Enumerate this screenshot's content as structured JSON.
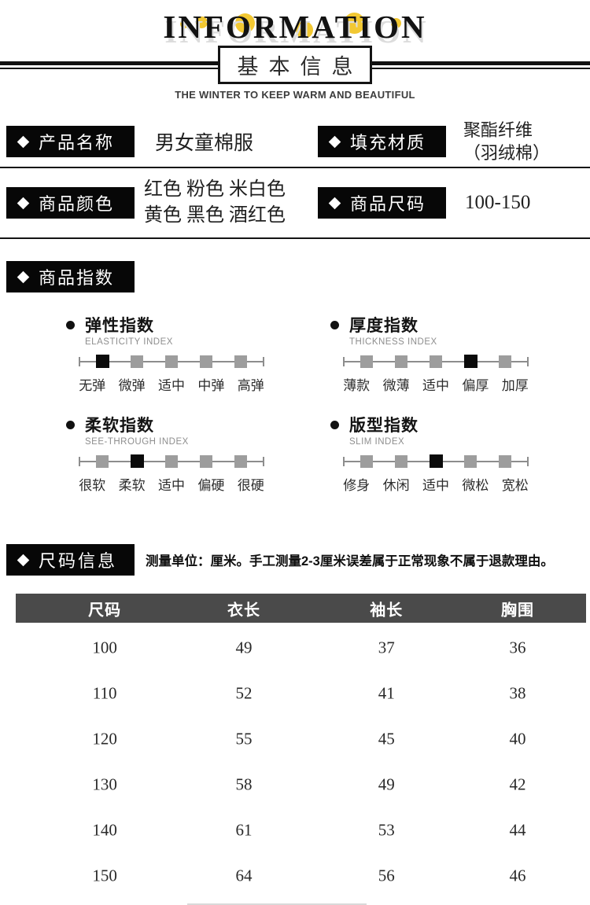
{
  "header": {
    "title": "INFORMATION",
    "box_title": "基本信息",
    "subtitle": "THE WINTER TO KEEP WARM AND BEAUTIFUL",
    "accent_color": "#F2C832"
  },
  "info": {
    "rows": [
      {
        "left": {
          "label": "产品名称",
          "value_lines": [
            "男女童棉服",
            ""
          ]
        },
        "right": {
          "label": "填充材质",
          "value_lines": [
            "聚酯纤维",
            "（羽绒棉）"
          ]
        }
      },
      {
        "left": {
          "label": "商品颜色",
          "value_lines": [
            "红色  粉色  米白色",
            "黄色  黑色  酒红色"
          ]
        },
        "right": {
          "label": "商品尺码",
          "value_lines": [
            "100-150",
            ""
          ]
        }
      }
    ]
  },
  "index_section": {
    "label": "商品指数",
    "marker_color": "#9D9D9D",
    "marker_active_color": "#0B0B0B",
    "blocks": [
      {
        "title": "弹性指数",
        "subtitle": "ELASTICITY INDEX",
        "selected": 0,
        "levels": [
          "无弹",
          "微弹",
          "适中",
          "中弹",
          "高弹"
        ]
      },
      {
        "title": "厚度指数",
        "subtitle": "THICKNESS INDEX",
        "selected": 3,
        "levels": [
          "薄款",
          "微薄",
          "适中",
          "偏厚",
          "加厚"
        ]
      },
      {
        "title": "柔软指数",
        "subtitle": "SEE-THROUGH INDEX",
        "selected": 1,
        "levels": [
          "很软",
          "柔软",
          "适中",
          "偏硬",
          "很硬"
        ]
      },
      {
        "title": "版型指数",
        "subtitle": "SLIM INDEX",
        "selected": 2,
        "levels": [
          "修身",
          "休闲",
          "适中",
          "微松",
          "宽松"
        ]
      }
    ]
  },
  "size_section": {
    "label": "尺码信息",
    "note": "测量单位：厘米。手工测量2-3厘米误差属于正常现象不属于退款理由。",
    "table": {
      "header_bg": "#4A4A4A",
      "columns": [
        "尺码",
        "衣长",
        "袖长",
        "胸围"
      ],
      "rows": [
        [
          "100",
          "49",
          "37",
          "36"
        ],
        [
          "110",
          "52",
          "41",
          "38"
        ],
        [
          "120",
          "55",
          "45",
          "40"
        ],
        [
          "130",
          "58",
          "49",
          "42"
        ],
        [
          "140",
          "61",
          "53",
          "44"
        ],
        [
          "150",
          "64",
          "56",
          "46"
        ]
      ]
    }
  }
}
